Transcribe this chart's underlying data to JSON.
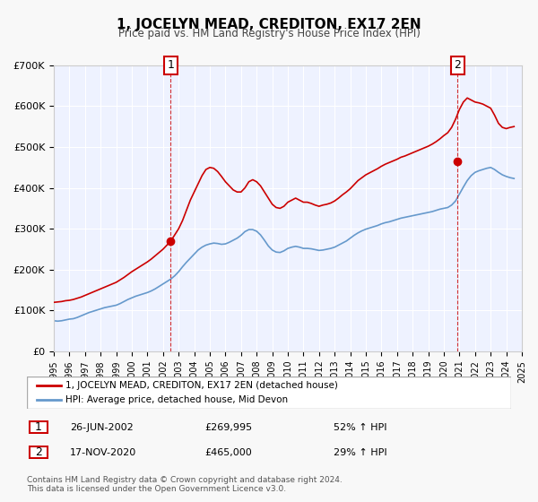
{
  "title": "1, JOCELYN MEAD, CREDITON, EX17 2EN",
  "subtitle": "Price paid vs. HM Land Registry's House Price Index (HPI)",
  "bg_color": "#f0f4ff",
  "plot_bg_color": "#eef2ff",
  "year_start": 1995,
  "year_end": 2025,
  "ylim": [
    0,
    700000
  ],
  "yticks": [
    0,
    100000,
    200000,
    300000,
    400000,
    500000,
    600000,
    700000
  ],
  "ytick_labels": [
    "£0",
    "£100K",
    "£200K",
    "£300K",
    "£400K",
    "£500K",
    "£600K",
    "£700K"
  ],
  "sale1_date": 2002.49,
  "sale1_price": 269995,
  "sale1_label": "1",
  "sale1_date_str": "26-JUN-2002",
  "sale1_price_str": "£269,995",
  "sale1_hpi_str": "52% ↑ HPI",
  "sale2_date": 2020.88,
  "sale2_price": 465000,
  "sale2_label": "2",
  "sale2_date_str": "17-NOV-2020",
  "sale2_price_str": "£465,000",
  "sale2_hpi_str": "29% ↑ HPI",
  "line1_color": "#cc0000",
  "line2_color": "#6699cc",
  "line1_label": "1, JOCELYN MEAD, CREDITON, EX17 2EN (detached house)",
  "line2_label": "HPI: Average price, detached house, Mid Devon",
  "footer_text": "Contains HM Land Registry data © Crown copyright and database right 2024.\nThis data is licensed under the Open Government Licence v3.0.",
  "hpi_data_x": [
    1995.0,
    1995.25,
    1995.5,
    1995.75,
    1996.0,
    1996.25,
    1996.5,
    1996.75,
    1997.0,
    1997.25,
    1997.5,
    1997.75,
    1998.0,
    1998.25,
    1998.5,
    1998.75,
    1999.0,
    1999.25,
    1999.5,
    1999.75,
    2000.0,
    2000.25,
    2000.5,
    2000.75,
    2001.0,
    2001.25,
    2001.5,
    2001.75,
    2002.0,
    2002.25,
    2002.5,
    2002.75,
    2003.0,
    2003.25,
    2003.5,
    2003.75,
    2004.0,
    2004.25,
    2004.5,
    2004.75,
    2005.0,
    2005.25,
    2005.5,
    2005.75,
    2006.0,
    2006.25,
    2006.5,
    2006.75,
    2007.0,
    2007.25,
    2007.5,
    2007.75,
    2008.0,
    2008.25,
    2008.5,
    2008.75,
    2009.0,
    2009.25,
    2009.5,
    2009.75,
    2010.0,
    2010.25,
    2010.5,
    2010.75,
    2011.0,
    2011.25,
    2011.5,
    2011.75,
    2012.0,
    2012.25,
    2012.5,
    2012.75,
    2013.0,
    2013.25,
    2013.5,
    2013.75,
    2014.0,
    2014.25,
    2014.5,
    2014.75,
    2015.0,
    2015.25,
    2015.5,
    2015.75,
    2016.0,
    2016.25,
    2016.5,
    2016.75,
    2017.0,
    2017.25,
    2017.5,
    2017.75,
    2018.0,
    2018.25,
    2018.5,
    2018.75,
    2019.0,
    2019.25,
    2019.5,
    2019.75,
    2020.0,
    2020.25,
    2020.5,
    2020.75,
    2021.0,
    2021.25,
    2021.5,
    2021.75,
    2022.0,
    2022.25,
    2022.5,
    2022.75,
    2023.0,
    2023.25,
    2023.5,
    2023.75,
    2024.0,
    2024.25,
    2024.5
  ],
  "hpi_data_y": [
    75000,
    74000,
    75000,
    77000,
    79000,
    80000,
    83000,
    87000,
    91000,
    95000,
    98000,
    101000,
    104000,
    107000,
    109000,
    111000,
    113000,
    117000,
    122000,
    127000,
    131000,
    135000,
    138000,
    141000,
    144000,
    148000,
    153000,
    159000,
    165000,
    171000,
    177000,
    185000,
    195000,
    207000,
    218000,
    228000,
    238000,
    248000,
    255000,
    260000,
    263000,
    265000,
    264000,
    262000,
    263000,
    267000,
    272000,
    277000,
    284000,
    293000,
    298000,
    298000,
    294000,
    285000,
    272000,
    258000,
    248000,
    243000,
    242000,
    246000,
    252000,
    255000,
    257000,
    255000,
    252000,
    252000,
    251000,
    249000,
    247000,
    248000,
    250000,
    252000,
    255000,
    260000,
    265000,
    270000,
    277000,
    284000,
    290000,
    295000,
    299000,
    302000,
    305000,
    308000,
    312000,
    315000,
    317000,
    320000,
    323000,
    326000,
    328000,
    330000,
    332000,
    334000,
    336000,
    338000,
    340000,
    342000,
    345000,
    348000,
    350000,
    352000,
    358000,
    368000,
    385000,
    402000,
    418000,
    430000,
    438000,
    442000,
    445000,
    448000,
    450000,
    445000,
    438000,
    432000,
    428000,
    425000,
    423000
  ],
  "price_data_x": [
    1995.0,
    1995.25,
    1995.5,
    1995.75,
    1996.0,
    1996.25,
    1996.5,
    1996.75,
    1997.0,
    1997.25,
    1997.5,
    1997.75,
    1998.0,
    1998.25,
    1998.5,
    1998.75,
    1999.0,
    1999.25,
    1999.5,
    1999.75,
    2000.0,
    2000.25,
    2000.5,
    2000.75,
    2001.0,
    2001.25,
    2001.5,
    2001.75,
    2002.0,
    2002.25,
    2002.5,
    2002.75,
    2003.0,
    2003.25,
    2003.5,
    2003.75,
    2004.0,
    2004.25,
    2004.5,
    2004.75,
    2005.0,
    2005.25,
    2005.5,
    2005.75,
    2006.0,
    2006.25,
    2006.5,
    2006.75,
    2007.0,
    2007.25,
    2007.5,
    2007.75,
    2008.0,
    2008.25,
    2008.5,
    2008.75,
    2009.0,
    2009.25,
    2009.5,
    2009.75,
    2010.0,
    2010.25,
    2010.5,
    2010.75,
    2011.0,
    2011.25,
    2011.5,
    2011.75,
    2012.0,
    2012.25,
    2012.5,
    2012.75,
    2013.0,
    2013.25,
    2013.5,
    2013.75,
    2014.0,
    2014.25,
    2014.5,
    2014.75,
    2015.0,
    2015.25,
    2015.5,
    2015.75,
    2016.0,
    2016.25,
    2016.5,
    2016.75,
    2017.0,
    2017.25,
    2017.5,
    2017.75,
    2018.0,
    2018.25,
    2018.5,
    2018.75,
    2019.0,
    2019.25,
    2019.5,
    2019.75,
    2020.0,
    2020.25,
    2020.5,
    2020.75,
    2021.0,
    2021.25,
    2021.5,
    2021.75,
    2022.0,
    2022.25,
    2022.5,
    2022.75,
    2023.0,
    2023.25,
    2023.5,
    2023.75,
    2024.0,
    2024.25,
    2024.5
  ],
  "price_data_y": [
    120000,
    121000,
    122000,
    124000,
    125000,
    127000,
    130000,
    133000,
    137000,
    141000,
    145000,
    149000,
    153000,
    157000,
    161000,
    165000,
    169000,
    175000,
    181000,
    188000,
    195000,
    201000,
    207000,
    213000,
    219000,
    226000,
    234000,
    242000,
    250000,
    260000,
    270000,
    285000,
    300000,
    320000,
    345000,
    370000,
    390000,
    410000,
    430000,
    445000,
    450000,
    448000,
    440000,
    428000,
    415000,
    405000,
    395000,
    390000,
    390000,
    400000,
    415000,
    420000,
    415000,
    405000,
    390000,
    375000,
    360000,
    352000,
    350000,
    355000,
    365000,
    370000,
    375000,
    370000,
    365000,
    365000,
    362000,
    358000,
    355000,
    358000,
    360000,
    363000,
    368000,
    375000,
    383000,
    390000,
    398000,
    408000,
    418000,
    425000,
    432000,
    437000,
    442000,
    447000,
    453000,
    458000,
    462000,
    466000,
    470000,
    475000,
    478000,
    482000,
    486000,
    490000,
    494000,
    498000,
    502000,
    507000,
    513000,
    520000,
    528000,
    535000,
    548000,
    568000,
    592000,
    610000,
    620000,
    615000,
    610000,
    608000,
    605000,
    600000,
    595000,
    578000,
    558000,
    548000,
    545000,
    548000,
    550000
  ]
}
